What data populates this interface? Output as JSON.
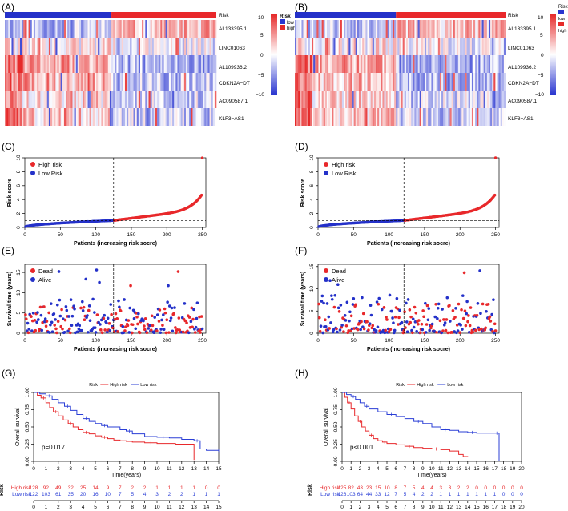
{
  "colors": {
    "high": "#e8282b",
    "low": "#2431c9",
    "km_high": "#e8282b",
    "km_low": "#2b3fd6",
    "heat_high": "#e62a2a",
    "heat_low": "#2a36d0",
    "heat_mid": "#ffffff"
  },
  "panels": {
    "A": "(A)",
    "B": "(B)",
    "C": "(C)",
    "D": "(D)",
    "E": "(E)",
    "F": "(F)",
    "G": "(G)",
    "H": "(H)"
  },
  "heatmap": {
    "genes": [
      "AL133395.1",
      "LINC01063",
      "AL109936.2",
      "CDKN2A−DT",
      "AC090587.1",
      "KLF3−AS1"
    ],
    "risk_label": "Risk",
    "legend_title": "Risk",
    "legend_low": "low",
    "legend_high": "high",
    "color_ticks": [
      "10",
      "5",
      "0",
      "−5",
      "−10"
    ],
    "split_fraction_train": 0.5,
    "split_fraction_test": 0.48
  },
  "chart_data": [
    {
      "id": "C",
      "type": "scatter",
      "xlabel": "Patients (increasing risk socre)",
      "ylabel": "Risk score",
      "xlim": [
        0,
        255
      ],
      "ylim": [
        0,
        10
      ],
      "xticks": [
        0,
        50,
        100,
        150,
        200,
        250
      ],
      "yticks": [
        0,
        2,
        4,
        6,
        8,
        10
      ],
      "n": 250,
      "cutoff_index": 125,
      "cutoff_value": 1.0,
      "legend": [
        "High risk",
        "Low Risk"
      ]
    },
    {
      "id": "D",
      "type": "scatter",
      "xlabel": "Patients (increasing risk socre)",
      "ylabel": "Risk score",
      "xlim": [
        0,
        255
      ],
      "ylim": [
        0,
        10
      ],
      "xticks": [
        0,
        50,
        100,
        150,
        200,
        250
      ],
      "yticks": [
        0,
        2,
        4,
        6,
        8,
        10
      ],
      "n": 250,
      "cutoff_index": 121,
      "cutoff_value": 1.0,
      "legend": [
        "High risk",
        "Low Risk"
      ]
    },
    {
      "id": "E",
      "type": "scatter",
      "xlabel": "Patients (increasing risk socre)",
      "ylabel": "Survival time (years)",
      "xlim": [
        0,
        255
      ],
      "ylim": [
        0,
        17
      ],
      "xticks": [
        0,
        50,
        100,
        150,
        200,
        250
      ],
      "yticks": [
        0,
        5,
        10,
        15
      ],
      "n": 250,
      "cutoff_index": 125,
      "legend": [
        "Dead",
        "Alive"
      ]
    },
    {
      "id": "F",
      "type": "scatter",
      "xlabel": "Patients (increasing risk socre)",
      "ylabel": "Survival time (years)",
      "xlim": [
        0,
        255
      ],
      "ylim": [
        0,
        15.5
      ],
      "xticks": [
        0,
        50,
        100,
        150,
        200,
        250
      ],
      "yticks": [
        0,
        5,
        10,
        15
      ],
      "n": 250,
      "cutoff_index": 121,
      "legend": [
        "Dead",
        "Alive"
      ]
    },
    {
      "id": "G",
      "type": "line",
      "title": "Risk",
      "legend": [
        "High risk",
        "Low risk"
      ],
      "xlabel": "Time(years)",
      "ylabel": "Overall survival",
      "xlim": [
        0,
        15
      ],
      "ylim": [
        0,
        1
      ],
      "xticks": [
        0,
        1,
        2,
        3,
        4,
        5,
        6,
        7,
        8,
        9,
        10,
        11,
        12,
        13,
        14,
        15
      ],
      "yticks": [
        "0.00",
        "0.25",
        "0.50",
        "0.75",
        "1.00"
      ],
      "pvalue": "p=0.017",
      "series": [
        {
          "name": "High risk",
          "x": [
            0,
            0.3,
            0.6,
            1.0,
            1.3,
            1.6,
            2.0,
            2.4,
            2.8,
            3.2,
            3.6,
            4.0,
            4.5,
            5.0,
            5.5,
            6.0,
            6.5,
            7.0,
            7.5,
            8.0,
            9.0,
            10.0,
            11.5,
            12.5,
            13.0
          ],
          "y": [
            1.0,
            0.96,
            0.92,
            0.85,
            0.78,
            0.72,
            0.66,
            0.6,
            0.55,
            0.5,
            0.46,
            0.42,
            0.4,
            0.37,
            0.35,
            0.33,
            0.31,
            0.3,
            0.29,
            0.28,
            0.27,
            0.26,
            0.25,
            0.25,
            0.02
          ]
        },
        {
          "name": "Low risk",
          "x": [
            0,
            0.5,
            1.0,
            1.5,
            2.0,
            2.5,
            3.0,
            3.5,
            4.0,
            4.5,
            5.0,
            5.5,
            6.0,
            7.0,
            7.5,
            8.0,
            9.0,
            10.0,
            11.0,
            12.0,
            13.0,
            13.5,
            14.0,
            15.0
          ],
          "y": [
            1.0,
            0.98,
            0.95,
            0.9,
            0.85,
            0.8,
            0.74,
            0.68,
            0.62,
            0.58,
            0.55,
            0.52,
            0.5,
            0.46,
            0.44,
            0.4,
            0.36,
            0.35,
            0.34,
            0.32,
            0.3,
            0.18,
            0.16,
            0.16
          ]
        }
      ],
      "risk_table": {
        "title": "Risk",
        "rows": [
          {
            "name": "High risk",
            "values": [
              "128",
              "92",
              "49",
              "32",
              "25",
              "14",
              "9",
              "7",
              "2",
              "2",
              "1",
              "1",
              "1",
              "1",
              "0",
              "0"
            ]
          },
          {
            "name": "Low risk",
            "values": [
              "122",
              "103",
              "61",
              "35",
              "20",
              "16",
              "10",
              "7",
              "5",
              "4",
              "3",
              "2",
              "2",
              "1",
              "1",
              "1"
            ]
          }
        ],
        "xlabel": "Time(years)",
        "xticks": [
          0,
          1,
          2,
          3,
          4,
          5,
          6,
          7,
          8,
          9,
          10,
          11,
          12,
          13,
          14,
          15
        ]
      }
    },
    {
      "id": "H",
      "type": "line",
      "title": "Risk",
      "legend": [
        "High risk",
        "Low risk"
      ],
      "xlabel": "Time(years)",
      "ylabel": "Overall survival",
      "xlim": [
        0,
        20
      ],
      "ylim": [
        0,
        1
      ],
      "xticks": [
        0,
        1,
        2,
        3,
        4,
        5,
        6,
        7,
        8,
        9,
        10,
        11,
        12,
        13,
        14,
        15,
        16,
        17,
        18,
        19,
        20
      ],
      "yticks": [
        "0.00",
        "0.25",
        "0.50",
        "0.75",
        "1.00"
      ],
      "pvalue": "p<0.001",
      "series": [
        {
          "name": "High risk",
          "x": [
            0,
            0.3,
            0.6,
            1.0,
            1.4,
            1.8,
            2.2,
            2.6,
            3.0,
            3.5,
            4.0,
            4.5,
            5.0,
            6.0,
            7.0,
            8.0,
            9.0,
            10.0,
            11.0,
            12.0,
            13.0,
            13.5,
            14.0
          ],
          "y": [
            1.0,
            0.93,
            0.85,
            0.76,
            0.66,
            0.58,
            0.5,
            0.44,
            0.38,
            0.33,
            0.3,
            0.28,
            0.26,
            0.24,
            0.22,
            0.2,
            0.19,
            0.18,
            0.17,
            0.15,
            0.1,
            0.07,
            0.06
          ]
        },
        {
          "name": "Low risk",
          "x": [
            0,
            0.5,
            1.0,
            1.5,
            2.0,
            2.5,
            3.0,
            4.0,
            5.0,
            6.0,
            7.0,
            8.0,
            9.0,
            10.0,
            11.0,
            12.0,
            13.0,
            14.0,
            15.0,
            16.0,
            17.0,
            17.5
          ],
          "y": [
            1.0,
            0.97,
            0.94,
            0.9,
            0.85,
            0.8,
            0.76,
            0.72,
            0.68,
            0.65,
            0.62,
            0.58,
            0.55,
            0.5,
            0.46,
            0.45,
            0.43,
            0.42,
            0.41,
            0.41,
            0.41,
            0.0
          ]
        }
      ],
      "risk_table": {
        "title": "Risk",
        "rows": [
          {
            "name": "High risk",
            "values": [
              "125",
              "82",
              "43",
              "23",
              "15",
              "10",
              "8",
              "7",
              "5",
              "4",
              "4",
              "3",
              "3",
              "2",
              "2",
              "0",
              "0",
              "0",
              "0",
              "0",
              "0"
            ]
          },
          {
            "name": "Low risk",
            "values": [
              "126",
              "103",
              "64",
              "44",
              "33",
              "12",
              "7",
              "5",
              "4",
              "2",
              "2",
              "1",
              "1",
              "1",
              "1",
              "1",
              "1",
              "1",
              "0",
              "0",
              "0"
            ]
          }
        ],
        "xlabel": "Time(years)",
        "xticks": [
          0,
          1,
          2,
          3,
          4,
          5,
          6,
          7,
          8,
          9,
          10,
          11,
          12,
          13,
          14,
          15,
          16,
          17,
          18,
          19,
          20
        ]
      }
    }
  ]
}
